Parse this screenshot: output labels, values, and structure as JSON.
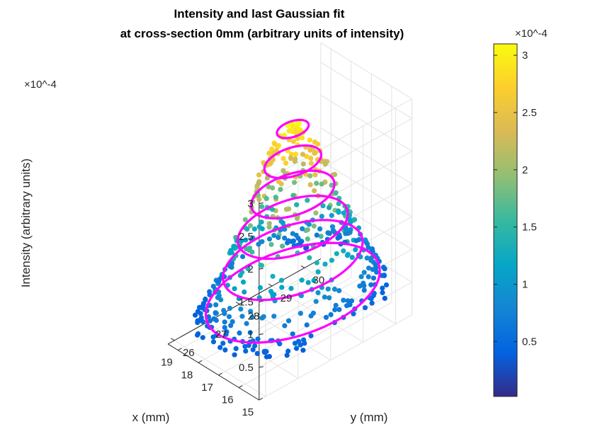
{
  "chart_data": {
    "type": "scatter3d",
    "title": [
      "Intensity and last Gaussian fit",
      "at cross-section 0mm (arbitrary units of intensity)"
    ],
    "xlabel": "x (mm)",
    "ylabel": "y (mm)",
    "zlabel": "Intensity (arbitrary units)",
    "z_exponent": "×10^-4",
    "xlim": [
      15,
      19.5
    ],
    "ylim": [
      25.8,
      30.5
    ],
    "zlim": [
      0,
      3.3
    ],
    "xticks": [
      "15",
      "16",
      "17",
      "18",
      "19"
    ],
    "yticks": [
      "26",
      "27",
      "28",
      "29",
      "30"
    ],
    "zticks": [
      "0.5",
      "1",
      "1.5",
      "2",
      "2.5",
      "3"
    ],
    "colorbar": {
      "ticks": [
        "0.5",
        "1",
        "1.5",
        "2",
        "2.5",
        "3"
      ],
      "exponent": "×10^-4",
      "range": [
        0.02,
        3.05
      ],
      "colormap": "parula"
    },
    "fit_contours": [
      {
        "z": 0.5,
        "rx": 2.2,
        "ry": 2.3
      },
      {
        "z": 1.0,
        "rx": 1.75,
        "ry": 1.85
      },
      {
        "z": 1.5,
        "rx": 1.4,
        "ry": 1.45
      },
      {
        "z": 2.0,
        "rx": 1.05,
        "ry": 1.1
      },
      {
        "z": 2.5,
        "rx": 0.72,
        "ry": 0.75
      },
      {
        "z": 3.0,
        "rx": 0.4,
        "ry": 0.42
      }
    ],
    "gaussian": {
      "peak": 3.05,
      "x0": 17.35,
      "y0": 28.3,
      "sigma": 1.25,
      "points": 560
    },
    "scatter_color": "intensity",
    "contour_color": "#ff00ff"
  }
}
